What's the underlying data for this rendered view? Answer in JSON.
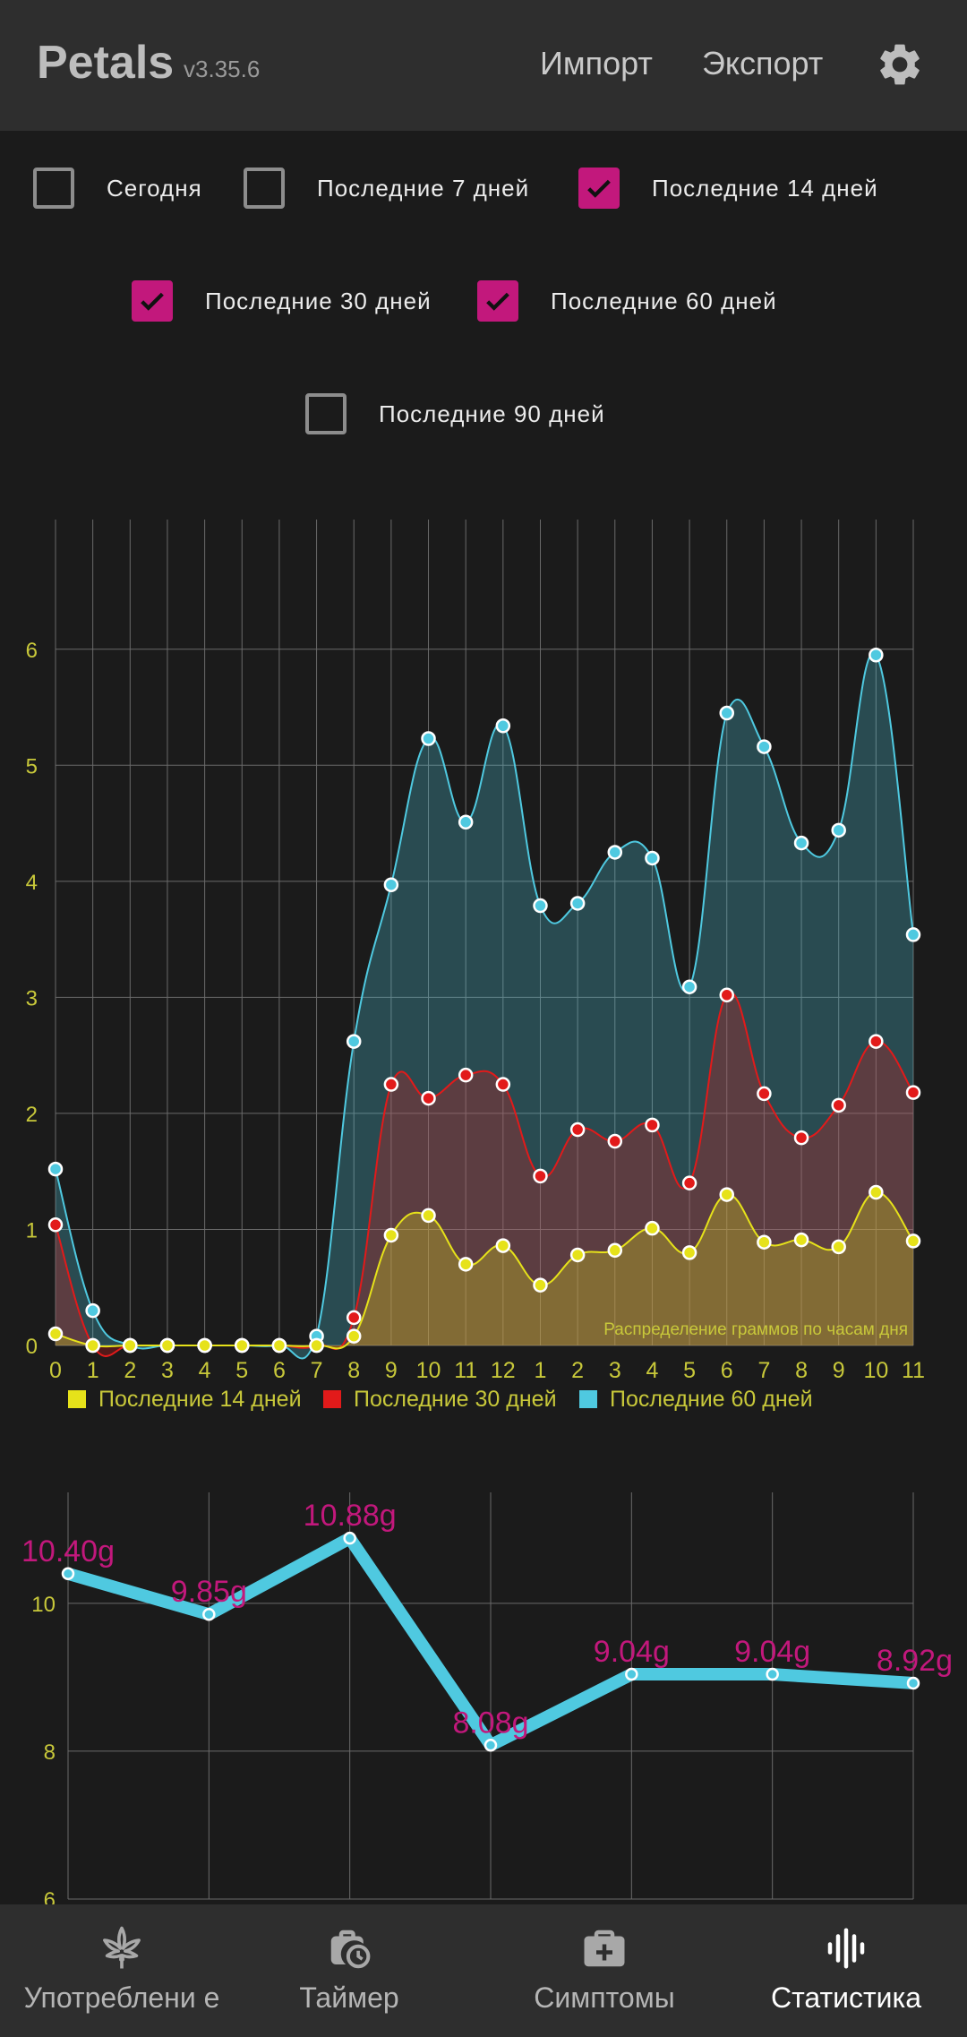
{
  "header": {
    "app_name": "Petals",
    "version": "v3.35.6",
    "import_label": "Импорт",
    "export_label": "Экспорт",
    "settings_icon": "gear-icon"
  },
  "filters": [
    {
      "label": "Сегодня",
      "checked": false
    },
    {
      "label": "Последние 7 дней",
      "checked": false
    },
    {
      "label": "Последние 14 дней",
      "checked": true
    },
    {
      "label": "Последние 30 дней",
      "checked": true
    },
    {
      "label": "Последние 60 дней",
      "checked": true
    },
    {
      "label": "Последние 90 дней",
      "checked": false
    }
  ],
  "colors": {
    "accent": "#c2187c",
    "axis_label": "#c8c83a",
    "series_14": "#e6e21a",
    "series_30": "#e21a1a",
    "series_60": "#4fc9e0",
    "value_label": "#c2187c"
  },
  "chart_data": [
    {
      "type": "area",
      "annotation": "Распределение граммов по часам дня",
      "categories": [
        "0",
        "1",
        "2",
        "3",
        "4",
        "5",
        "6",
        "7",
        "8",
        "9",
        "10",
        "11",
        "12",
        "1",
        "2",
        "3",
        "4",
        "5",
        "6",
        "7",
        "8",
        "9",
        "10",
        "11"
      ],
      "ylim": [
        0,
        6.5
      ],
      "yticks": [
        0,
        1,
        2,
        3,
        4,
        5,
        6
      ],
      "grid": true,
      "legend_position": "bottom",
      "series": [
        {
          "name": "Последние 60 дней",
          "color": "#4fc9e0",
          "values": [
            1.52,
            0.3,
            0,
            0,
            0,
            0,
            0,
            0.08,
            2.62,
            3.97,
            5.23,
            4.51,
            5.34,
            3.79,
            3.81,
            4.25,
            4.2,
            3.09,
            5.45,
            5.16,
            4.33,
            4.44,
            5.95,
            3.54
          ]
        },
        {
          "name": "Последние 30 дней",
          "color": "#e21a1a",
          "values": [
            1.04,
            0,
            0,
            0,
            0,
            0,
            0,
            0,
            0.24,
            2.25,
            2.13,
            2.33,
            2.25,
            1.46,
            1.86,
            1.76,
            1.9,
            1.4,
            3.02,
            2.17,
            1.79,
            2.07,
            2.62,
            2.18
          ]
        },
        {
          "name": "Последние 14 дней",
          "color": "#e6e21a",
          "values": [
            0.1,
            0,
            0,
            0,
            0,
            0,
            0,
            0,
            0.08,
            0.95,
            1.12,
            0.7,
            0.86,
            0.52,
            0.78,
            0.82,
            1.01,
            0.8,
            1.3,
            0.89,
            0.91,
            0.85,
            1.32,
            0.9
          ]
        }
      ]
    },
    {
      "type": "line",
      "ylim": [
        6,
        11.5
      ],
      "yticks": [
        6,
        8,
        10
      ],
      "grid": true,
      "series": [
        {
          "color": "#4fc9e0",
          "values": [
            10.4,
            9.85,
            10.88,
            8.08,
            9.04,
            9.04,
            8.92
          ],
          "labels": [
            "10.40g",
            "9.85g",
            "10.88g",
            "8.08g",
            "9.04g",
            "9.04g",
            "8.92g"
          ]
        }
      ]
    }
  ],
  "bottom_nav": [
    {
      "label": "Употреблени е",
      "icon": "cannabis-leaf-icon",
      "active": false
    },
    {
      "label": "Таймер",
      "icon": "timer-bag-icon",
      "active": false
    },
    {
      "label": "Симптомы",
      "icon": "first-aid-kit-icon",
      "active": false
    },
    {
      "label": "Статистика",
      "icon": "sound-wave-icon",
      "active": true
    }
  ]
}
